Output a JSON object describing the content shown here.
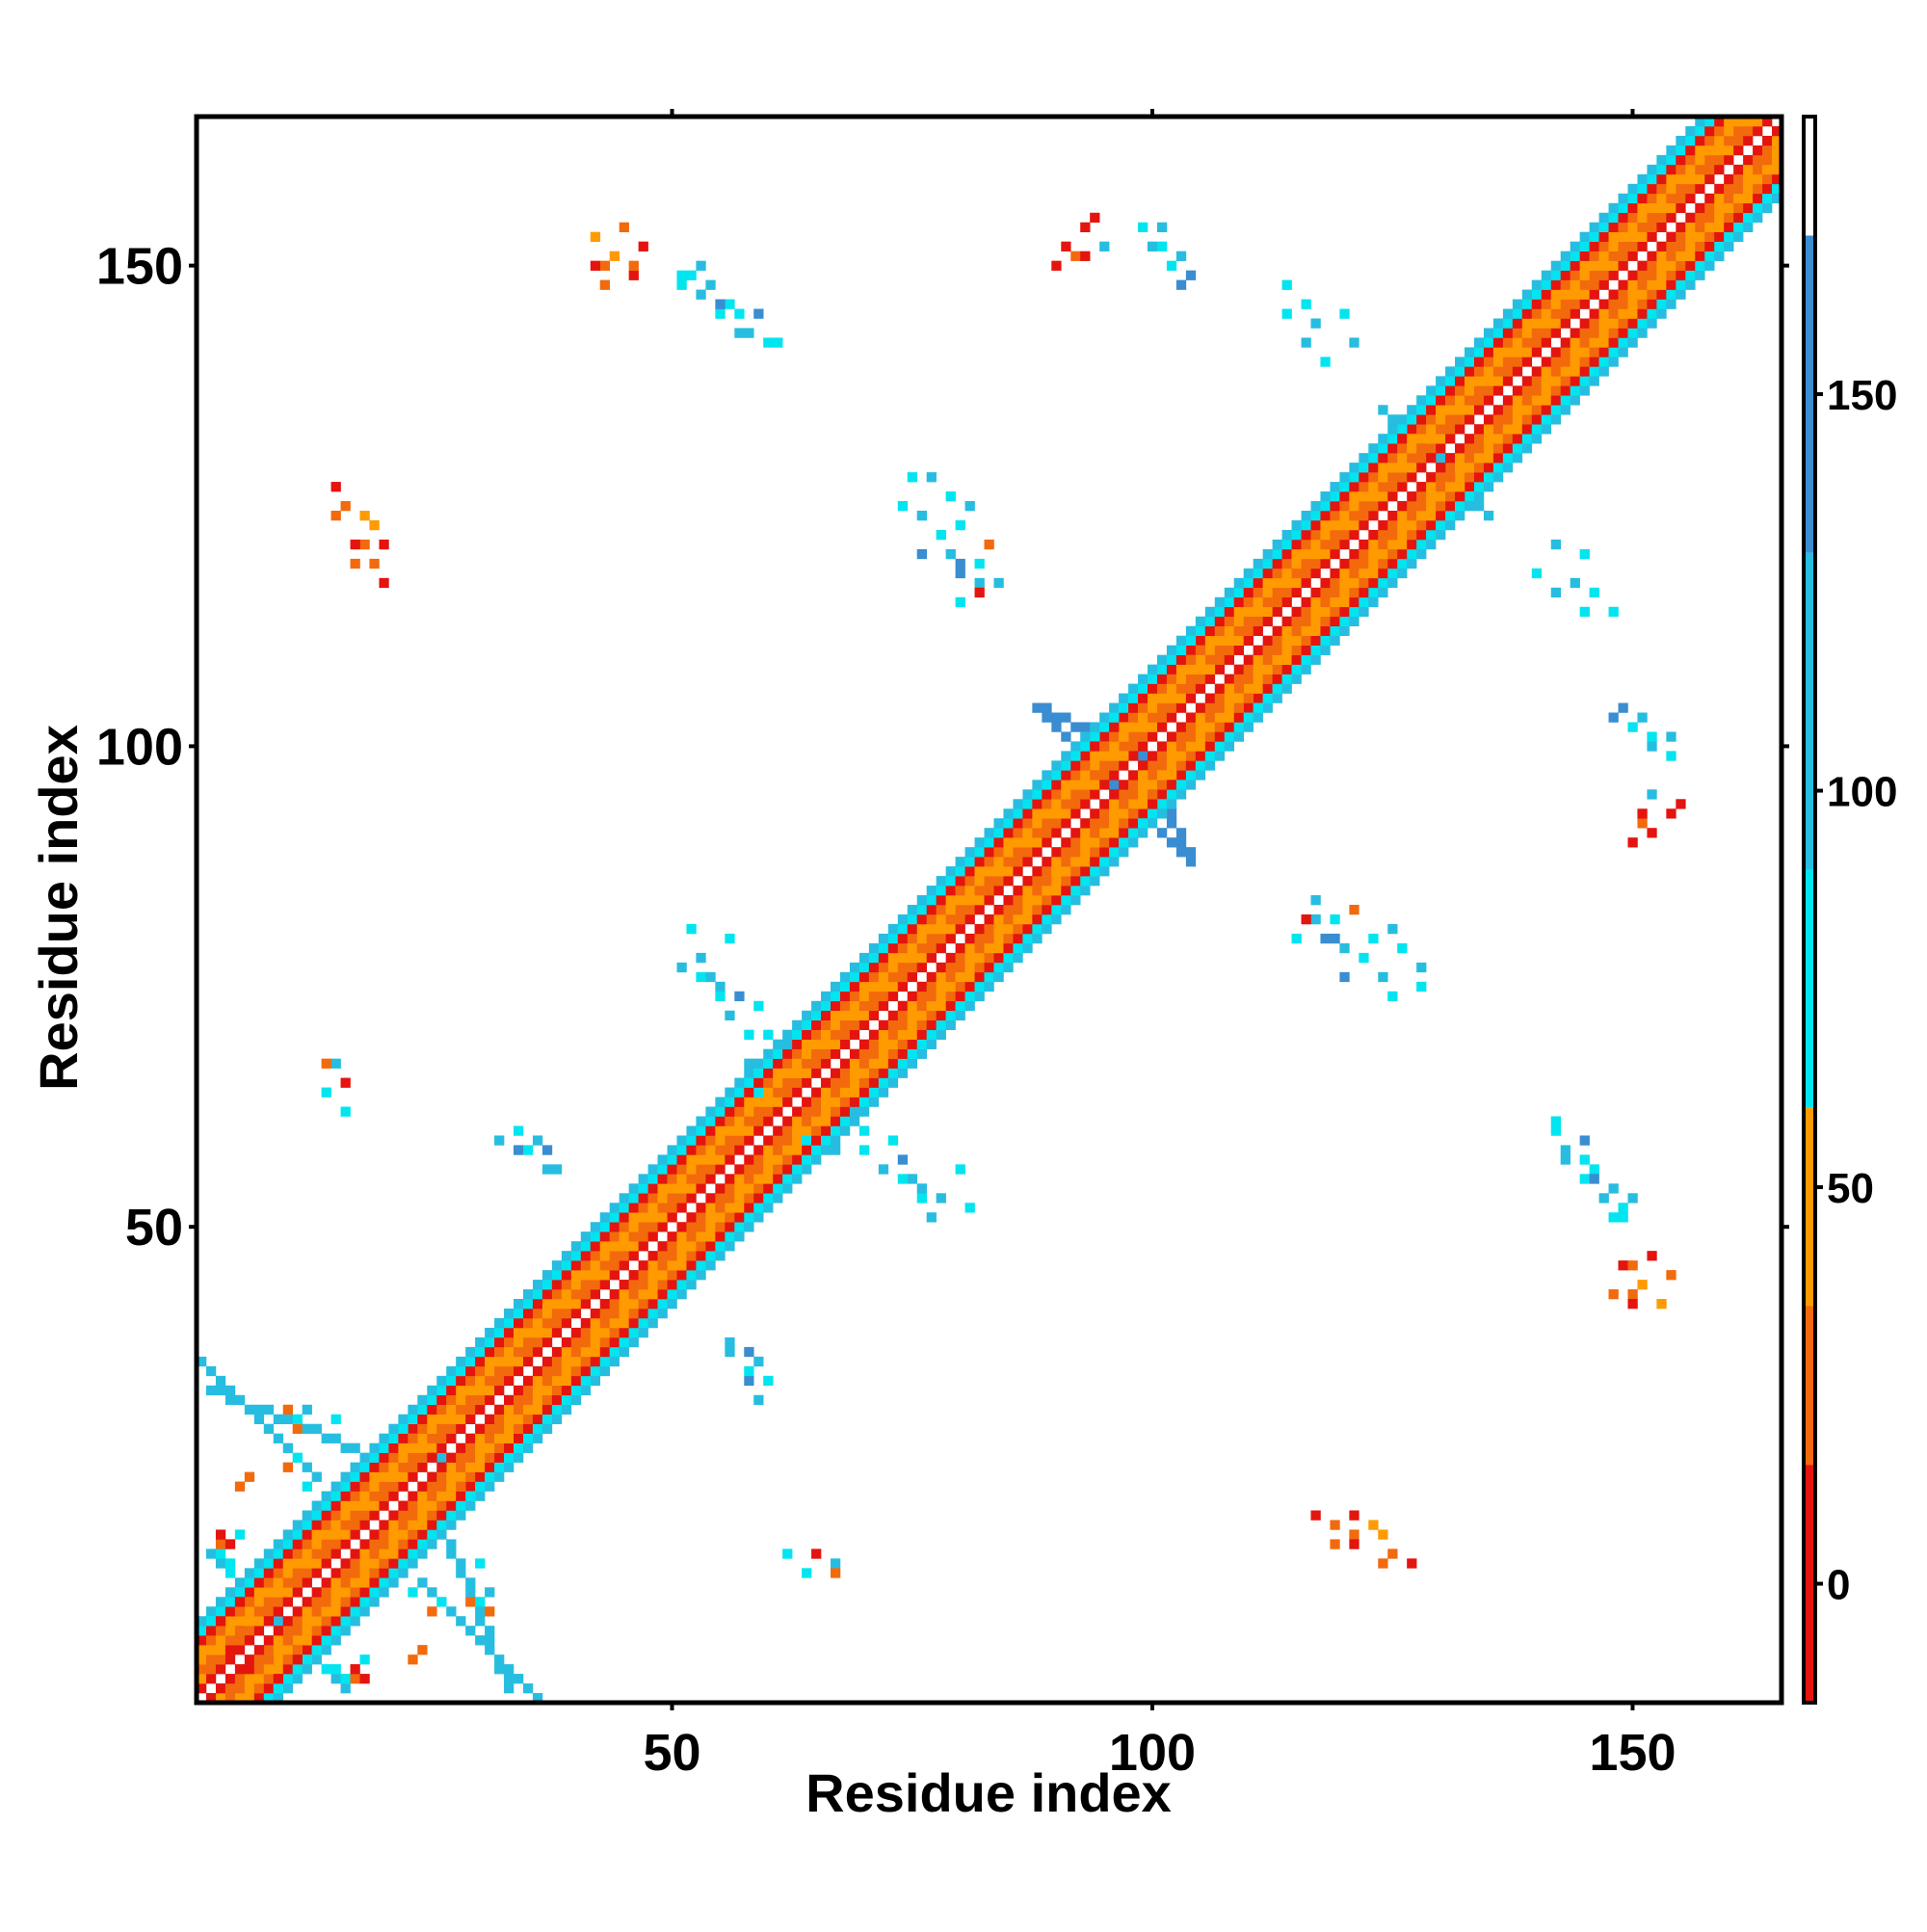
{
  "chart_data": {
    "type": "heatmap",
    "title": "",
    "xlabel": "Residue index",
    "ylabel": "Residue index",
    "xlim": [
      1,
      165
    ],
    "ylim": [
      1,
      165
    ],
    "x_ticks": [
      50,
      100,
      150
    ],
    "y_ticks": [
      50,
      100,
      150
    ],
    "x_tick_labels": [
      "50",
      "100",
      "150"
    ],
    "y_tick_labels": [
      "50",
      "100",
      "150"
    ],
    "grid": false,
    "legend": "colorbar-right",
    "colorbar": {
      "range": [
        -15,
        185
      ],
      "ticks": [
        0,
        50,
        100,
        150
      ],
      "tick_labels": [
        "0",
        "50",
        "100",
        "150"
      ],
      "bins": [
        {
          "from": -15,
          "to": 15,
          "color": "#e4140f"
        },
        {
          "from": 15,
          "to": 35,
          "color": "#f26a0c"
        },
        {
          "from": 35,
          "to": 60,
          "color": "#ff9a00"
        },
        {
          "from": 60,
          "to": 90,
          "color": "#00e5ef"
        },
        {
          "from": 90,
          "to": 130,
          "color": "#27bde0"
        },
        {
          "from": 130,
          "to": 170,
          "color": "#3a8dd1"
        },
        {
          "from": 170,
          "to": 185,
          "color": "#ffffff"
        }
      ]
    },
    "cell_value_representatives": {
      "R": 5,
      "O": 25,
      "Y": 45,
      "C": 75,
      "S": 110,
      "B": 150
    },
    "diagonal_band": {
      "from": 1,
      "to": 165,
      "pattern": [
        {
          "offset": 1,
          "color": "R"
        },
        {
          "offset": 2,
          "color": "O"
        },
        {
          "offset": 3,
          "color": "O"
        },
        {
          "offset": 4,
          "color": "Y"
        },
        {
          "offset": 5,
          "color": "O"
        },
        {
          "offset": 6,
          "color": "R"
        },
        {
          "offset": 7,
          "color": "C"
        },
        {
          "offset": 8,
          "color": "S"
        }
      ]
    },
    "segments": [
      {
        "x": [
          2,
          16
        ],
        "y": [
          16,
          2
        ],
        "color": "S"
      },
      {
        "x": [
          2,
          17
        ],
        "y": [
          33,
          27
        ],
        "color": "S"
      },
      {
        "x": [
          2,
          17
        ],
        "y": [
          10,
          3
        ],
        "color": "C"
      },
      {
        "x": [
          24,
          36
        ],
        "y": [
          13,
          1
        ],
        "color": "S"
      },
      {
        "x": [
          22,
          30
        ],
        "y": [
          30,
          22
        ],
        "color": "S"
      },
      {
        "x": [
          96,
          104
        ],
        "y": [
          104,
          88
        ],
        "color": "B"
      },
      {
        "x": [
          88,
          96
        ],
        "y": [
          104,
          96
        ],
        "color": "B"
      },
      {
        "x": [
          104,
          110
        ],
        "y": [
          112,
          104
        ],
        "color": "S"
      },
      {
        "x": [
          130,
          135
        ],
        "y": [
          130,
          124
        ],
        "color": "S"
      }
    ],
    "cells": [
      [
        6,
        4,
        "R"
      ],
      [
        7,
        4,
        "O"
      ],
      [
        18,
        3,
        "R"
      ],
      [
        17,
        3,
        "O"
      ],
      [
        4,
        17,
        "R"
      ],
      [
        5,
        18,
        "C"
      ],
      [
        5,
        23,
        "O"
      ],
      [
        6,
        24,
        "O"
      ],
      [
        10,
        31,
        "O"
      ],
      [
        11,
        30,
        "C"
      ],
      [
        12,
        31,
        "S"
      ],
      [
        15,
        30,
        "C"
      ],
      [
        23,
        12,
        "C"
      ],
      [
        25,
        10,
        "O"
      ],
      [
        26,
        11,
        "C"
      ],
      [
        29,
        11,
        "O"
      ],
      [
        16,
        65,
        "R"
      ],
      [
        16,
        62,
        "C"
      ],
      [
        18,
        121,
        "O"
      ],
      [
        19,
        123,
        "Y"
      ],
      [
        20,
        121,
        "R"
      ],
      [
        19,
        119,
        "O"
      ],
      [
        20,
        117,
        "R"
      ],
      [
        16,
        125,
        "O"
      ],
      [
        32,
        59,
        "S"
      ],
      [
        34,
        58,
        "B"
      ],
      [
        35,
        58,
        "C"
      ],
      [
        37,
        56,
        "S"
      ],
      [
        56,
        38,
        "S"
      ],
      [
        58,
        37,
        "B"
      ],
      [
        59,
        36,
        "S"
      ],
      [
        60,
        34,
        "C"
      ],
      [
        43,
        150,
        "O"
      ],
      [
        44,
        151,
        "Y"
      ],
      [
        46,
        149,
        "R"
      ],
      [
        47,
        152,
        "O"
      ],
      [
        52,
        149,
        "C"
      ],
      [
        54,
        148,
        "S"
      ],
      [
        56,
        146,
        "C"
      ],
      [
        57,
        145,
        "C"
      ],
      [
        58,
        143,
        "S"
      ],
      [
        61,
        142,
        "C"
      ],
      [
        55,
        145,
        "B"
      ],
      [
        59,
        145,
        "B"
      ],
      [
        51,
        77,
        "S"
      ],
      [
        53,
        76,
        "C"
      ],
      [
        55,
        75,
        "S"
      ],
      [
        57,
        74,
        "B"
      ],
      [
        59,
        73,
        "C"
      ],
      [
        60,
        70,
        "C"
      ],
      [
        62,
        69,
        "S"
      ],
      [
        56,
        80,
        "C"
      ],
      [
        64,
        59,
        "C"
      ],
      [
        67,
        58,
        "S"
      ],
      [
        70,
        58,
        "C"
      ],
      [
        72,
        56,
        "S"
      ],
      [
        74,
        55,
        "C"
      ],
      [
        76,
        54,
        "S"
      ],
      [
        78,
        53,
        "S"
      ],
      [
        81,
        52,
        "C"
      ],
      [
        74,
        125,
        "C"
      ],
      [
        76,
        124,
        "S"
      ],
      [
        78,
        122,
        "C"
      ],
      [
        79,
        120,
        "S"
      ],
      [
        80,
        118,
        "B"
      ],
      [
        82,
        117,
        "S"
      ],
      [
        76,
        120,
        "B"
      ],
      [
        80,
        115,
        "C"
      ],
      [
        91,
        152,
        "R"
      ],
      [
        92,
        151,
        "O"
      ],
      [
        93,
        154,
        "R"
      ],
      [
        90,
        150,
        "R"
      ],
      [
        99,
        154,
        "C"
      ],
      [
        100,
        152,
        "S"
      ],
      [
        102,
        150,
        "C"
      ],
      [
        103,
        148,
        "B"
      ],
      [
        116,
        146,
        "C"
      ],
      [
        117,
        144,
        "S"
      ],
      [
        120,
        145,
        "C"
      ],
      [
        121,
        142,
        "S"
      ],
      [
        117,
        84,
        "S"
      ],
      [
        119,
        82,
        "C"
      ],
      [
        121,
        83,
        "O"
      ],
      [
        123,
        80,
        "C"
      ],
      [
        125,
        81,
        "S"
      ],
      [
        126,
        79,
        "C"
      ],
      [
        128,
        77,
        "S"
      ],
      [
        128,
        75,
        "C"
      ],
      [
        119,
        80,
        "B"
      ],
      [
        116,
        82,
        "R"
      ],
      [
        122,
        78,
        "C"
      ],
      [
        140,
        118,
        "C"
      ],
      [
        142,
        116,
        "S"
      ],
      [
        145,
        114,
        "C"
      ],
      [
        148,
        114,
        "C"
      ],
      [
        149,
        104,
        "B"
      ],
      [
        151,
        103,
        "S"
      ],
      [
        152,
        101,
        "C"
      ],
      [
        154,
        101,
        "S"
      ],
      [
        151,
        93,
        "R"
      ],
      [
        155,
        94,
        "R"
      ],
      [
        152,
        95,
        "S"
      ],
      [
        142,
        60,
        "C"
      ],
      [
        143,
        57,
        "S"
      ],
      [
        145,
        55,
        "C"
      ],
      [
        147,
        53,
        "S"
      ],
      [
        148,
        51,
        "C"
      ],
      [
        146,
        55,
        "B"
      ],
      [
        150,
        53,
        "S"
      ],
      [
        149,
        51,
        "C"
      ],
      [
        150,
        46,
        "O"
      ],
      [
        152,
        47,
        "R"
      ],
      [
        154,
        45,
        "O"
      ],
      [
        153,
        42,
        "Y"
      ],
      [
        148,
        43,
        "O"
      ],
      [
        150,
        42,
        "R"
      ],
      [
        119,
        17,
        "O"
      ],
      [
        121,
        17,
        "R"
      ],
      [
        124,
        18,
        "Y"
      ],
      [
        124,
        15,
        "O"
      ],
      [
        127,
        15,
        "R"
      ],
      [
        64,
        14,
        "C"
      ],
      [
        67,
        15,
        "S"
      ],
      [
        67,
        14,
        "O"
      ]
    ]
  }
}
